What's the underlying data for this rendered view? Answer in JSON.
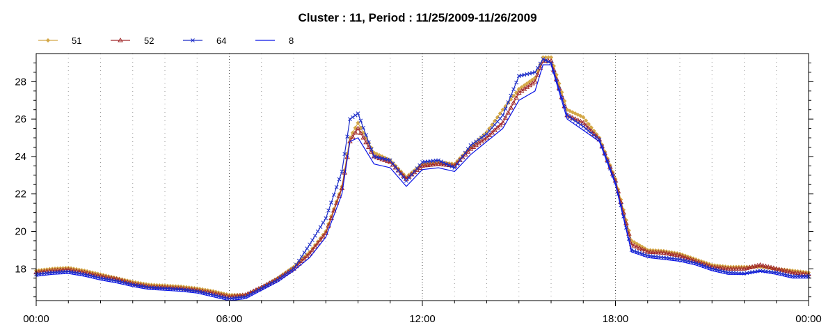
{
  "chart_data": {
    "type": "line",
    "title": "Cluster : 11, Period : 11/25/2009-11/26/2009",
    "xlabel": "",
    "ylabel": "",
    "x_ticks": [
      "00:00",
      "06:00",
      "12:00",
      "18:00",
      "00:00"
    ],
    "x_tick_hours": [
      0,
      6,
      12,
      18,
      24
    ],
    "xlim": [
      0,
      24
    ],
    "ylim": [
      16.3,
      29.5
    ],
    "y_ticks": [
      18,
      20,
      22,
      24,
      26,
      28
    ],
    "y_tick_labels": [
      "18",
      "20",
      "22",
      "24",
      "26",
      "28"
    ],
    "grid": "vertical dotted",
    "legend_position": "top-left",
    "x_unit": "hour of day",
    "x": [
      0,
      0.5,
      1,
      1.5,
      2,
      2.5,
      3,
      3.5,
      4,
      4.5,
      5,
      5.5,
      6,
      6.5,
      7,
      7.5,
      8,
      8.5,
      9,
      9.5,
      9.75,
      10,
      10.5,
      11,
      11.5,
      12,
      12.5,
      13,
      13.5,
      14,
      14.5,
      15,
      15.5,
      15.75,
      16,
      16.5,
      17,
      17.5,
      18,
      18.5,
      19,
      19.5,
      20,
      20.5,
      21,
      21.5,
      22,
      22.5,
      23,
      23.5,
      24
    ],
    "series": [
      {
        "name": "51",
        "color": "#d4a848",
        "marker": "diamond",
        "values": [
          17.9,
          18.0,
          18.05,
          17.9,
          17.7,
          17.5,
          17.3,
          17.15,
          17.1,
          17.05,
          16.95,
          16.8,
          16.6,
          16.6,
          17.0,
          17.5,
          18.1,
          18.9,
          20.0,
          22.4,
          25.0,
          25.8,
          24.2,
          23.8,
          22.9,
          23.6,
          23.7,
          23.6,
          24.5,
          25.3,
          26.5,
          27.6,
          28.2,
          29.3,
          29.3,
          26.5,
          26.1,
          25.0,
          22.8,
          19.5,
          19.0,
          18.95,
          18.8,
          18.5,
          18.2,
          18.1,
          18.1,
          18.1,
          18.0,
          17.9,
          17.8
        ]
      },
      {
        "name": "52",
        "color": "#a0282a",
        "marker": "triangle",
        "values": [
          17.8,
          17.9,
          17.95,
          17.8,
          17.6,
          17.45,
          17.2,
          17.05,
          17.0,
          16.95,
          16.85,
          16.7,
          16.5,
          16.6,
          17.0,
          17.45,
          18.0,
          18.8,
          19.9,
          22.3,
          24.8,
          25.5,
          24.0,
          23.7,
          22.8,
          23.5,
          23.6,
          23.5,
          24.4,
          25.0,
          25.8,
          27.4,
          28.0,
          29.1,
          29.1,
          26.2,
          25.8,
          24.9,
          22.7,
          19.3,
          18.9,
          18.85,
          18.7,
          18.4,
          18.1,
          18.0,
          18.0,
          18.2,
          18.0,
          17.8,
          17.7
        ]
      },
      {
        "name": "64",
        "color": "#1c2cc8",
        "marker": "x",
        "values": [
          17.7,
          17.8,
          17.85,
          17.7,
          17.5,
          17.35,
          17.15,
          17.0,
          16.95,
          16.9,
          16.8,
          16.6,
          16.4,
          16.5,
          16.95,
          17.4,
          18.0,
          19.3,
          20.7,
          23.2,
          26.0,
          26.3,
          24.0,
          23.8,
          22.7,
          23.7,
          23.8,
          23.4,
          24.6,
          25.2,
          26.2,
          28.3,
          28.5,
          29.2,
          29.0,
          26.2,
          25.6,
          24.9,
          22.6,
          19.0,
          18.7,
          18.6,
          18.5,
          18.3,
          18.0,
          17.8,
          17.75,
          17.9,
          17.8,
          17.6,
          17.6
        ]
      },
      {
        "name": "8",
        "color": "#0a14e6",
        "marker": "none",
        "values": [
          17.6,
          17.7,
          17.75,
          17.6,
          17.4,
          17.25,
          17.05,
          16.9,
          16.85,
          16.8,
          16.7,
          16.5,
          16.3,
          16.4,
          16.85,
          17.3,
          17.9,
          18.6,
          19.7,
          22.0,
          24.8,
          25.0,
          23.6,
          23.4,
          22.4,
          23.3,
          23.4,
          23.2,
          24.1,
          24.8,
          25.5,
          27.0,
          27.5,
          28.9,
          28.9,
          26.0,
          25.4,
          24.8,
          22.5,
          18.9,
          18.6,
          18.5,
          18.4,
          18.2,
          17.9,
          17.7,
          17.7,
          17.85,
          17.7,
          17.5,
          17.5
        ]
      }
    ]
  }
}
